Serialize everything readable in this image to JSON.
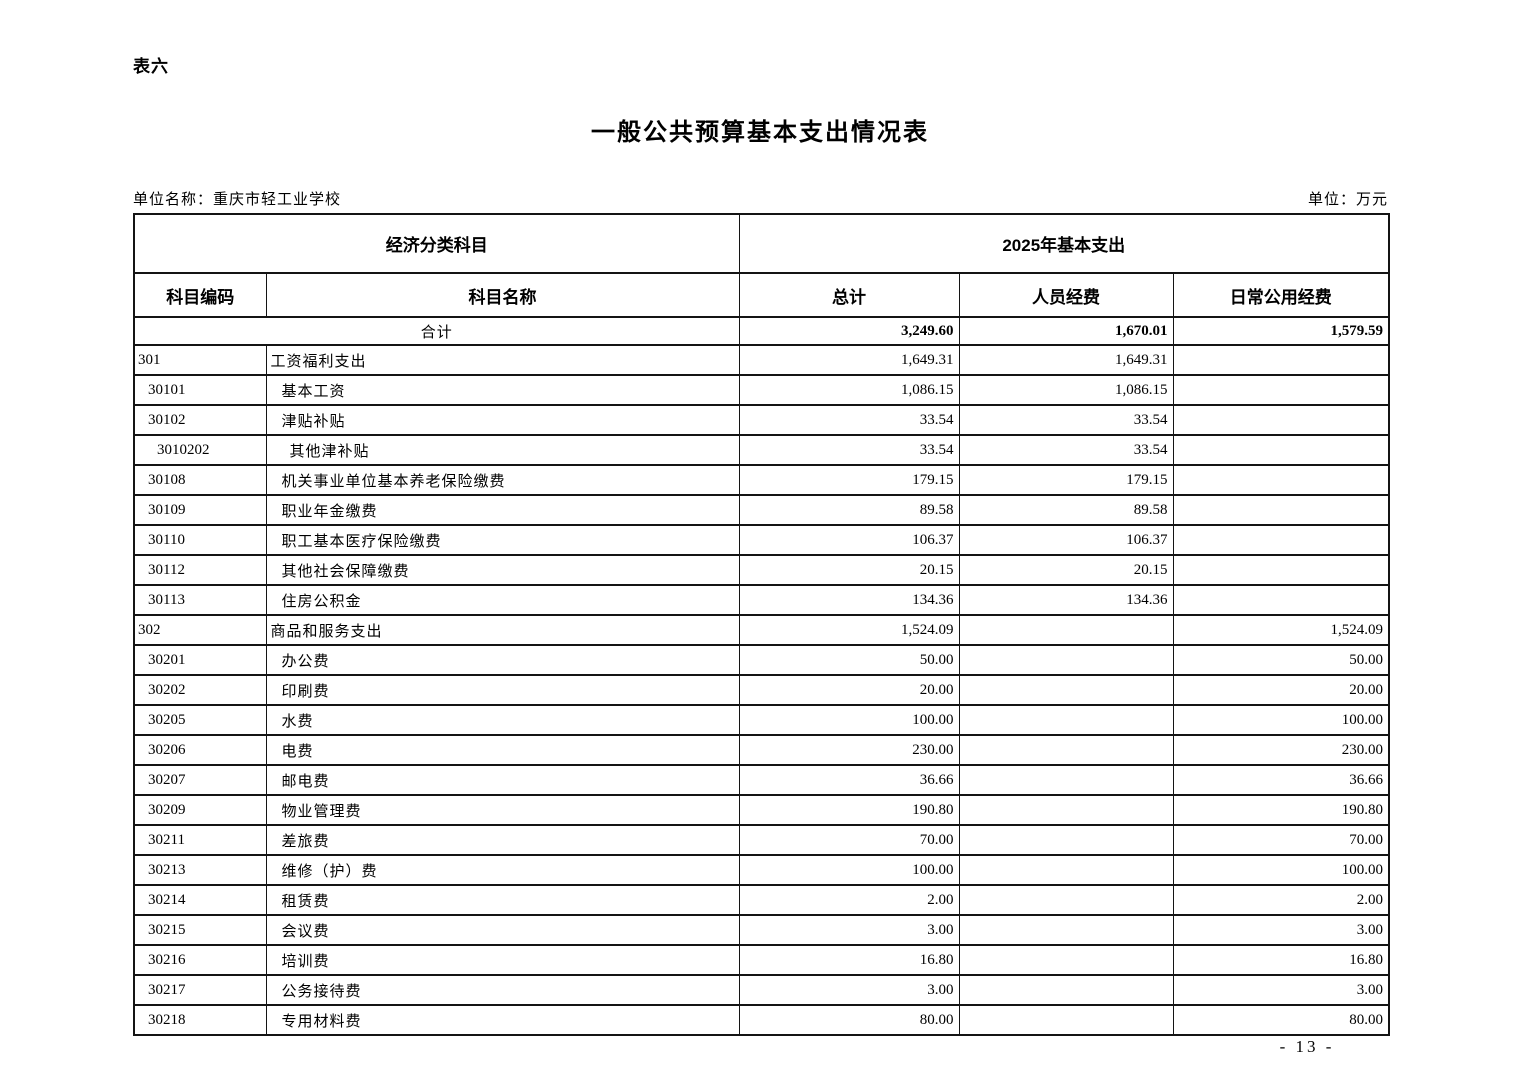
{
  "page": {
    "table_label": "表六",
    "title": "一般公共预算基本支出情况表",
    "unit_name": "单位名称：重庆市轻工业学校",
    "unit": "单位：万元",
    "page_number": "- 13 -"
  },
  "table": {
    "header": {
      "group_subject": "经济分类科目",
      "group_expenditure": "2025年基本支出",
      "col_code": "科目编码",
      "col_name": "科目名称",
      "col_total": "总计",
      "col_personnel": "人员经费",
      "col_public": "日常公用经费"
    },
    "total_row": {
      "label": "合计",
      "total": "3,249.60",
      "personnel": "1,670.01",
      "public": "1,579.59"
    },
    "rows": [
      {
        "code": "301",
        "name": "工资福利支出",
        "total": "1,649.31",
        "personnel": "1,649.31",
        "public": "",
        "indent": 0
      },
      {
        "code": "30101",
        "name": "基本工资",
        "total": "1,086.15",
        "personnel": "1,086.15",
        "public": "",
        "indent": 1
      },
      {
        "code": "30102",
        "name": "津贴补贴",
        "total": "33.54",
        "personnel": "33.54",
        "public": "",
        "indent": 1
      },
      {
        "code": "3010202",
        "name": "其他津补贴",
        "total": "33.54",
        "personnel": "33.54",
        "public": "",
        "indent": 2
      },
      {
        "code": "30108",
        "name": "机关事业单位基本养老保险缴费",
        "total": "179.15",
        "personnel": "179.15",
        "public": "",
        "indent": 1
      },
      {
        "code": "30109",
        "name": "职业年金缴费",
        "total": "89.58",
        "personnel": "89.58",
        "public": "",
        "indent": 1
      },
      {
        "code": "30110",
        "name": "职工基本医疗保险缴费",
        "total": "106.37",
        "personnel": "106.37",
        "public": "",
        "indent": 1
      },
      {
        "code": "30112",
        "name": "其他社会保障缴费",
        "total": "20.15",
        "personnel": "20.15",
        "public": "",
        "indent": 1
      },
      {
        "code": "30113",
        "name": "住房公积金",
        "total": "134.36",
        "personnel": "134.36",
        "public": "",
        "indent": 1
      },
      {
        "code": "302",
        "name": "商品和服务支出",
        "total": "1,524.09",
        "personnel": "",
        "public": "1,524.09",
        "indent": 0
      },
      {
        "code": "30201",
        "name": "办公费",
        "total": "50.00",
        "personnel": "",
        "public": "50.00",
        "indent": 1
      },
      {
        "code": "30202",
        "name": "印刷费",
        "total": "20.00",
        "personnel": "",
        "public": "20.00",
        "indent": 1
      },
      {
        "code": "30205",
        "name": "水费",
        "total": "100.00",
        "personnel": "",
        "public": "100.00",
        "indent": 1
      },
      {
        "code": "30206",
        "name": "电费",
        "total": "230.00",
        "personnel": "",
        "public": "230.00",
        "indent": 1
      },
      {
        "code": "30207",
        "name": "邮电费",
        "total": "36.66",
        "personnel": "",
        "public": "36.66",
        "indent": 1
      },
      {
        "code": "30209",
        "name": "物业管理费",
        "total": "190.80",
        "personnel": "",
        "public": "190.80",
        "indent": 1
      },
      {
        "code": "30211",
        "name": "差旅费",
        "total": "70.00",
        "personnel": "",
        "public": "70.00",
        "indent": 1
      },
      {
        "code": "30213",
        "name": "维修（护）费",
        "total": "100.00",
        "personnel": "",
        "public": "100.00",
        "indent": 1
      },
      {
        "code": "30214",
        "name": "租赁费",
        "total": "2.00",
        "personnel": "",
        "public": "2.00",
        "indent": 1
      },
      {
        "code": "30215",
        "name": "会议费",
        "total": "3.00",
        "personnel": "",
        "public": "3.00",
        "indent": 1
      },
      {
        "code": "30216",
        "name": "培训费",
        "total": "16.80",
        "personnel": "",
        "public": "16.80",
        "indent": 1
      },
      {
        "code": "30217",
        "name": "公务接待费",
        "total": "3.00",
        "personnel": "",
        "public": "3.00",
        "indent": 1
      },
      {
        "code": "30218",
        "name": "专用材料费",
        "total": "80.00",
        "personnel": "",
        "public": "80.00",
        "indent": 1
      }
    ]
  }
}
